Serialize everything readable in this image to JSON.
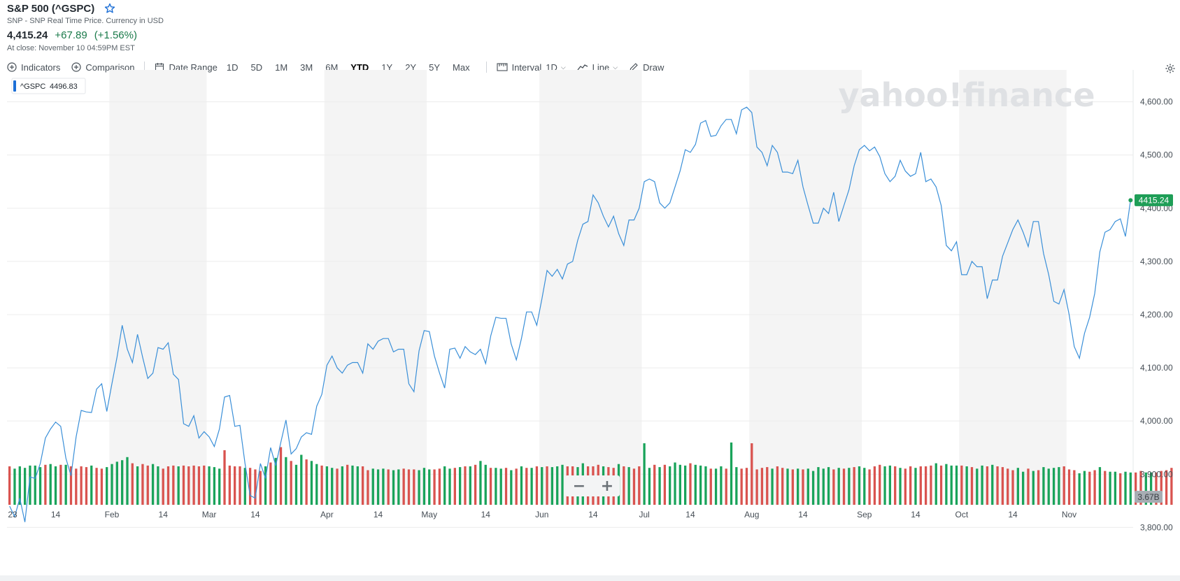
{
  "header": {
    "title": "S&P 500 (^GSPC)",
    "subtitle": "SNP - SNP Real Time Price. Currency in USD",
    "price": "4,415.24",
    "change": "+67.89",
    "change_pct": "(+1.56%)",
    "close_note": "At close: November 10 04:59PM EST"
  },
  "toolbar": {
    "indicators_label": "Indicators",
    "comparison_label": "Comparison",
    "date_range_label": "Date Range",
    "ranges": [
      "1D",
      "5D",
      "1M",
      "3M",
      "6M",
      "YTD",
      "1Y",
      "2Y",
      "5Y",
      "Max"
    ],
    "active_range": "YTD",
    "interval_label": "Interval",
    "interval_value": "1D",
    "line_label": "Line",
    "draw_label": "Draw"
  },
  "colors": {
    "line": "#3a8fd8",
    "up": "#19a35a",
    "down": "#d9534f",
    "last_price_badge": "#1e9e57",
    "volume_badge": "#a7adb3",
    "band": "#f4f4f4"
  },
  "legend": {
    "symbol": "^GSPC",
    "value": "4496.83"
  },
  "watermark": "yahoo!finance",
  "zoom": {
    "minus": "−",
    "plus": "+"
  },
  "chart_data": {
    "type": "line",
    "x_ticks": [
      "23",
      "14",
      "Feb",
      "14",
      "Mar",
      "14",
      "Apr",
      "14",
      "May",
      "14",
      "Jun",
      "14",
      "Jul",
      "14",
      "Aug",
      "14",
      "Sep",
      "14",
      "Oct",
      "14",
      "Nov"
    ],
    "y_ticks": [
      "4,600.00",
      "4,500.00",
      "4,400.00",
      "4,300.00",
      "4,200.00",
      "4,100.00",
      "4,000.00",
      "3,900.00",
      "3,800.00"
    ],
    "ylim": [
      3740,
      4660
    ],
    "last_price_label": "4415.24",
    "volume_label": "3.67B",
    "series": [
      {
        "values": [
          3840,
          3820,
          3855,
          3810,
          3895,
          3892,
          3920,
          3968,
          3985,
          3998,
          3990,
          3930,
          3897,
          3970,
          4020,
          4017,
          4016,
          4060,
          4070,
          4018,
          4070,
          4120,
          4180,
          4135,
          4110,
          4163,
          4120,
          4080,
          4090,
          4138,
          4135,
          4147,
          4088,
          4078,
          3995,
          3990,
          4010,
          3968,
          3980,
          3970,
          3952,
          3985,
          4045,
          4048,
          3990,
          3992,
          3920,
          3860,
          3855,
          3920,
          3892,
          3950,
          3916,
          3960,
          4002,
          3938,
          3948,
          3970,
          3978,
          3975,
          4028,
          4050,
          4105,
          4122,
          4100,
          4090,
          4105,
          4110,
          4110,
          4090,
          4145,
          4135,
          4150,
          4155,
          4155,
          4130,
          4135,
          4135,
          4070,
          4055,
          4132,
          4170,
          4168,
          4122,
          4090,
          4062,
          4135,
          4137,
          4118,
          4140,
          4130,
          4125,
          4135,
          4108,
          4160,
          4195,
          4193,
          4193,
          4145,
          4115,
          4155,
          4205,
          4205,
          4180,
          4230,
          4283,
          4272,
          4285,
          4267,
          4295,
          4300,
          4340,
          4370,
          4375,
          4425,
          4410,
          4385,
          4365,
          4385,
          4352,
          4330,
          4378,
          4378,
          4400,
          4450,
          4455,
          4450,
          4410,
          4400,
          4410,
          4440,
          4470,
          4510,
          4505,
          4520,
          4560,
          4565,
          4535,
          4537,
          4555,
          4567,
          4567,
          4540,
          4585,
          4590,
          4580,
          4515,
          4505,
          4480,
          4518,
          4505,
          4468,
          4468,
          4465,
          4490,
          4440,
          4405,
          4372,
          4372,
          4400,
          4390,
          4430,
          4375,
          4405,
          4435,
          4480,
          4510,
          4518,
          4508,
          4515,
          4497,
          4465,
          4450,
          4460,
          4490,
          4470,
          4460,
          4465,
          4505,
          4450,
          4455,
          4440,
          4405,
          4330,
          4320,
          4337,
          4275,
          4275,
          4300,
          4290,
          4290,
          4230,
          4265,
          4265,
          4310,
          4335,
          4360,
          4378,
          4355,
          4328,
          4375,
          4375,
          4315,
          4275,
          4225,
          4220,
          4247,
          4200,
          4140,
          4118,
          4165,
          4195,
          4240,
          4318,
          4355,
          4360,
          4375,
          4380,
          4347,
          4415
        ]
      }
    ],
    "volume": {
      "values": [
        0.5,
        0.47,
        0.5,
        0.48,
        0.51,
        0.51,
        0.49,
        0.52,
        0.53,
        0.5,
        0.52,
        0.52,
        0.5,
        0.47,
        0.5,
        0.49,
        0.51,
        0.48,
        0.47,
        0.49,
        0.53,
        0.56,
        0.58,
        0.62,
        0.54,
        0.5,
        0.53,
        0.51,
        0.53,
        0.5,
        0.47,
        0.5,
        0.51,
        0.5,
        0.51,
        0.5,
        0.51,
        0.5,
        0.51,
        0.5,
        0.49,
        0.47,
        0.71,
        0.51,
        0.5,
        0.5,
        0.48,
        0.48,
        0.46,
        0.44,
        0.5,
        0.55,
        0.61,
        0.75,
        0.62,
        0.57,
        0.52,
        0.65,
        0.59,
        0.57,
        0.53,
        0.51,
        0.5,
        0.48,
        0.47,
        0.5,
        0.52,
        0.51,
        0.5,
        0.5,
        0.45,
        0.47,
        0.46,
        0.47,
        0.46,
        0.45,
        0.46,
        0.47,
        0.46,
        0.46,
        0.45,
        0.48,
        0.46,
        0.46,
        0.47,
        0.5,
        0.47,
        0.48,
        0.49,
        0.5,
        0.5,
        0.52,
        0.57,
        0.52,
        0.48,
        0.48,
        0.47,
        0.48,
        0.45,
        0.47,
        0.5,
        0.48,
        0.48,
        0.5,
        0.49,
        0.5,
        0.49,
        0.5,
        0.52,
        0.5,
        0.5,
        0.49,
        0.54,
        0.5,
        0.5,
        0.52,
        0.5,
        0.49,
        0.48,
        0.53,
        0.5,
        0.49,
        0.47,
        0.5,
        0.8,
        0.48,
        0.52,
        0.49,
        0.52,
        0.5,
        0.55,
        0.52,
        0.51,
        0.54,
        0.52,
        0.51,
        0.5,
        0.47,
        0.47,
        0.5,
        0.47,
        0.81,
        0.49,
        0.47,
        0.48,
        0.8,
        0.46,
        0.48,
        0.49,
        0.47,
        0.5,
        0.48,
        0.47,
        0.46,
        0.47,
        0.46,
        0.47,
        0.44,
        0.49,
        0.47,
        0.49,
        0.46,
        0.48,
        0.47,
        0.48,
        0.49,
        0.5,
        0.48,
        0.46,
        0.5,
        0.52,
        0.5,
        0.51,
        0.5,
        0.48,
        0.47,
        0.5,
        0.48,
        0.5,
        0.5,
        0.51,
        0.54,
        0.51,
        0.53,
        0.51,
        0.51,
        0.51,
        0.5,
        0.49,
        0.47,
        0.51,
        0.5,
        0.52,
        0.5,
        0.49,
        0.47,
        0.45,
        0.48,
        0.43,
        0.47,
        0.44,
        0.45,
        0.49,
        0.47,
        0.48,
        0.49,
        0.5,
        0.46,
        0.45,
        0.41,
        0.44,
        0.43,
        0.45,
        0.49,
        0.44,
        0.43,
        0.43,
        0.41,
        0.43,
        0.42,
        0.42,
        0.44,
        0.42,
        0.42,
        0.42,
        0.44,
        0.45,
        0.48
      ],
      "up": [
        false,
        true,
        true,
        true,
        true,
        true,
        true,
        false,
        true,
        true,
        false,
        true,
        false,
        false,
        false,
        false,
        true,
        false,
        false,
        true,
        true,
        true,
        true,
        true,
        false,
        true,
        false,
        false,
        true,
        true,
        false,
        false,
        false,
        true,
        false,
        false,
        false,
        false,
        false,
        true,
        true,
        true,
        false,
        false,
        false,
        false,
        true,
        false,
        false,
        false,
        true,
        false,
        true,
        false,
        true,
        false,
        true,
        true,
        false,
        true,
        true,
        false,
        true,
        true,
        false,
        true,
        false,
        true,
        true,
        false,
        false,
        true,
        true,
        true,
        false,
        true,
        true,
        false,
        false,
        false,
        true,
        true,
        true,
        false,
        false,
        true,
        true,
        false,
        true,
        false,
        true,
        false,
        true,
        true,
        false,
        true,
        true,
        false,
        true,
        false,
        true,
        false,
        true,
        false,
        true,
        false,
        true,
        true,
        true,
        false,
        false,
        true,
        true,
        false,
        false,
        false,
        true,
        false,
        false,
        true,
        false,
        true,
        false,
        false,
        true,
        true,
        false,
        true,
        false,
        true,
        true,
        true,
        true,
        false,
        true,
        true,
        true,
        false,
        true,
        true,
        false,
        true,
        true,
        false,
        false,
        false,
        false,
        false,
        false,
        true,
        false,
        false,
        true,
        false,
        true,
        false,
        true,
        true,
        true,
        true,
        true,
        false,
        true,
        false,
        true,
        false,
        true,
        true,
        false,
        false,
        false,
        true,
        true,
        false,
        true,
        false,
        false,
        true,
        false,
        false,
        false,
        true,
        false,
        true,
        true,
        true,
        false,
        true,
        false,
        true,
        true,
        false,
        true,
        false,
        false,
        false,
        false,
        true,
        true,
        false,
        true,
        false,
        true,
        true,
        true,
        true,
        false,
        false,
        false,
        true,
        true,
        false,
        false,
        true,
        false,
        true,
        true,
        false,
        true,
        true,
        false,
        false,
        true,
        true
      ]
    }
  }
}
